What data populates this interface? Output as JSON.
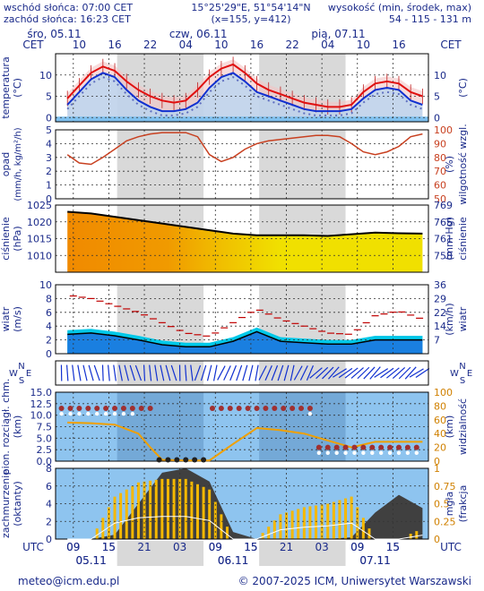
{
  "header": {
    "sunrise": "wschód słońca: 07:00 CET",
    "sunset": "zachód słońca: 16:23 CET",
    "coords": "15°25'29\"E, 51°54'14\"N",
    "grid": "(x=155, y=412)",
    "elevation_label": "wysokość (min, środek, max)",
    "elevation_values": "54 - 115 - 131 m"
  },
  "footer": {
    "email": "meteo@icm.edu.pl",
    "copyright": "© 2007-2025 ICM, Uniwersytet Warszawski"
  },
  "colors": {
    "text": "#1a2a8a",
    "grid": "#333333",
    "night": "#d9d9d9",
    "temp": "#e01010",
    "dew": "#1030d0",
    "humidity": "#c84020",
    "pressure_orange": "#f08800",
    "pressure_yellow": "#f0e000",
    "wind_area": "#1a7fe0",
    "wind_gust": "#c00000",
    "cloud_sky": "#8ec4ef",
    "cloud_dark": "#404040",
    "sun": "#f5b800"
  },
  "chart_data": {
    "type": "line",
    "timezone_top": "CET",
    "timezone_bottom": "UTC",
    "x_hours": [
      8,
      9,
      10,
      11,
      12,
      13,
      14,
      15,
      16,
      17,
      18,
      19,
      20,
      21,
      22,
      23,
      24,
      25,
      26,
      27,
      28,
      29,
      30,
      31,
      32,
      33,
      34,
      35,
      36,
      37,
      38,
      39,
      40,
      41,
      42,
      43,
      44,
      45,
      46,
      47,
      48,
      49,
      50,
      51,
      52,
      53,
      54,
      55,
      56,
      57,
      58,
      59
    ],
    "top_days": [
      {
        "label": "śro, 05.11",
        "hour": 0
      },
      {
        "label": "czw, 06.11",
        "hour": 24
      },
      {
        "label": "pią, 07.11",
        "hour": 48
      }
    ],
    "top_ticks": [
      {
        "label": "10",
        "hour": 10
      },
      {
        "label": "16",
        "hour": 16
      },
      {
        "label": "22",
        "hour": 22
      },
      {
        "label": "04",
        "hour": 28
      },
      {
        "label": "10",
        "hour": 34
      },
      {
        "label": "16",
        "hour": 40
      },
      {
        "label": "22",
        "hour": 46
      },
      {
        "label": "04",
        "hour": 52
      },
      {
        "label": "10",
        "hour": 58
      },
      {
        "label": "16",
        "hour": 64
      }
    ],
    "bottom_ticks": [
      {
        "label": "09",
        "hour": 9
      },
      {
        "label": "15",
        "hour": 15
      },
      {
        "label": "21",
        "hour": 21
      },
      {
        "label": "03",
        "hour": 27
      },
      {
        "label": "09",
        "hour": 33
      },
      {
        "label": "15",
        "hour": 39
      },
      {
        "label": "21",
        "hour": 45
      },
      {
        "label": "03",
        "hour": 51
      },
      {
        "label": "09",
        "hour": 57
      },
      {
        "label": "15",
        "hour": 63
      }
    ],
    "bottom_days": [
      {
        "label": "05.11",
        "hour": 12
      },
      {
        "label": "06.11",
        "hour": 36
      },
      {
        "label": "07.11",
        "hour": 60
      }
    ],
    "night_spans": [
      [
        16.4,
        31
      ],
      [
        40.4,
        55
      ]
    ],
    "temperature": {
      "ylabel": "temperatura (°C)",
      "ylabel_right": "(°C)",
      "ylim": [
        -1,
        15
      ],
      "ticks": [
        0,
        5,
        10
      ],
      "hours": [
        8,
        10,
        12,
        14,
        16,
        18,
        20,
        22,
        24,
        26,
        28,
        30,
        32,
        34,
        36,
        38,
        40,
        42,
        44,
        46,
        48,
        50,
        52,
        54,
        56,
        58,
        60,
        62,
        64,
        66,
        68
      ],
      "temp": [
        4.5,
        7.5,
        10.5,
        12.0,
        11.0,
        8.5,
        6.5,
        5.0,
        4.0,
        3.5,
        4.0,
        6.5,
        9.5,
        11.5,
        12.5,
        10.5,
        8.0,
        6.5,
        5.5,
        4.5,
        3.5,
        3.0,
        2.5,
        2.5,
        3.0,
        6.0,
        8.0,
        8.5,
        8.0,
        6.0,
        5.0
      ],
      "dew": [
        3.0,
        6.0,
        9.0,
        10.5,
        9.5,
        6.5,
        4.0,
        2.5,
        1.5,
        1.5,
        2.0,
        3.5,
        7.0,
        9.5,
        10.5,
        8.5,
        6.0,
        5.0,
        4.0,
        3.0,
        2.0,
        1.5,
        1.5,
        1.5,
        2.0,
        4.5,
        6.5,
        7.0,
        6.5,
        4.0,
        3.0
      ]
    },
    "precip_humidity": {
      "ylabel": "opad (mm/h, kg/m²/h)",
      "ylabel_right": "wilgotność wzgl. (%)",
      "ylim": [
        0,
        5
      ],
      "ticks": [
        0,
        1,
        2,
        3,
        4,
        5
      ],
      "ylim_right": [
        50,
        100
      ],
      "ticks_right": [
        50,
        60,
        70,
        80,
        90,
        100
      ],
      "hours": [
        8,
        10,
        12,
        14,
        16,
        18,
        20,
        22,
        24,
        26,
        28,
        30,
        32,
        34,
        36,
        38,
        40,
        42,
        44,
        46,
        48,
        50,
        52,
        54,
        56,
        58,
        60,
        62,
        64,
        66,
        68
      ],
      "humidity": [
        82,
        76,
        75,
        80,
        86,
        92,
        95,
        97,
        98,
        98,
        98,
        95,
        82,
        77,
        80,
        86,
        90,
        92,
        93,
        94,
        95,
        96,
        96,
        95,
        90,
        84,
        82,
        84,
        88,
        95,
        97
      ]
    },
    "pressure": {
      "ylabel": "ciśnienie (hPa)",
      "ylabel_right": "ciśnienie (mm Hg)",
      "ylim": [
        1005,
        1025
      ],
      "ticks": [
        1010,
        1015,
        1020,
        1025
      ],
      "ticks_right": [
        {
          "label": "769",
          "hpa": 1025
        },
        {
          "label": "765",
          "hpa": 1020
        },
        {
          "label": "761",
          "hpa": 1015
        },
        {
          "label": "758",
          "hpa": 1010
        }
      ],
      "hours": [
        8,
        12,
        16,
        20,
        24,
        28,
        32,
        36,
        40,
        44,
        48,
        52,
        56,
        60,
        64,
        68
      ],
      "values": [
        1023.0,
        1022.5,
        1021.5,
        1020.5,
        1019.5,
        1018.5,
        1017.5,
        1016.5,
        1016.0,
        1016.0,
        1016.0,
        1015.8,
        1016.3,
        1016.8,
        1016.6,
        1016.5
      ]
    },
    "wind": {
      "ylabel": "wiatr (m/s)",
      "ylabel_right": "wiatr (km/h)",
      "ylim": [
        0,
        10
      ],
      "ticks": [
        0,
        2,
        4,
        6,
        8,
        10
      ],
      "ticks_right": [
        {
          "label": "36",
          "ms": 10
        },
        {
          "label": "29",
          "ms": 8
        },
        {
          "label": "22",
          "ms": 6
        },
        {
          "label": "14",
          "ms": 4
        },
        {
          "label": "7",
          "ms": 2
        }
      ],
      "hours": [
        8,
        12,
        16,
        20,
        24,
        28,
        32,
        36,
        40,
        44,
        48,
        52,
        56,
        60,
        64,
        68
      ],
      "speed": [
        2.8,
        3.0,
        2.6,
        2.0,
        1.3,
        1.0,
        1.0,
        1.8,
        3.2,
        1.8,
        1.6,
        1.4,
        1.4,
        2.0,
        2.0,
        2.0
      ],
      "gust": [
        8.5,
        8.0,
        7.0,
        6.0,
        4.5,
        3.0,
        2.5,
        4.5,
        6.5,
        5.0,
        4.0,
        3.0,
        2.8,
        5.5,
        6.2,
        5.0
      ]
    },
    "wind_direction": {
      "left_label": "W S N E",
      "right_label": "W S N E",
      "note": "wind-arrows"
    },
    "visibility_cloud_base": {
      "ylabel": "pion. rozciągł. chm. (km)",
      "ylabel_right": "widzialność (km)",
      "ylim": [
        0,
        15
      ],
      "ticks": [
        0,
        2.5,
        5,
        7.5,
        10,
        12.5,
        15
      ],
      "ylim_right": [
        0,
        100
      ],
      "ticks_right": [
        0,
        20,
        40,
        60,
        80,
        100
      ],
      "hours": [
        8,
        12,
        16,
        20,
        22,
        24,
        28,
        32,
        36,
        40,
        44,
        48,
        52,
        56,
        60,
        64,
        68
      ],
      "visibility": [
        56,
        55,
        53,
        40,
        20,
        2,
        1,
        1,
        25,
        48,
        45,
        40,
        30,
        20,
        28,
        28,
        28
      ]
    },
    "cloudiness": {
      "ylabel": "zachmurzenie (oktanty)",
      "ylabel_right": "mgła (frakcja)",
      "ylim": [
        0,
        8
      ],
      "ticks": [
        0,
        2,
        4,
        6,
        8
      ],
      "ylim_right": [
        0,
        1
      ],
      "ticks_right": [
        0,
        0.25,
        0.5,
        0.75,
        1
      ],
      "hours": [
        8,
        12,
        16,
        20,
        24,
        28,
        32,
        36,
        40,
        44,
        48,
        52,
        56,
        60,
        64,
        68
      ],
      "low_cloud": [
        0,
        0,
        0.5,
        4.0,
        7.5,
        8.0,
        6.5,
        0.8,
        0,
        0,
        0,
        0,
        0.2,
        3.0,
        5.0,
        3.5
      ],
      "sunshine": [
        0,
        0,
        0.6,
        0.8,
        0.85,
        0.85,
        0.7,
        0,
        0,
        0.35,
        0.45,
        0.5,
        0.6,
        0,
        0,
        0.15
      ]
    }
  }
}
